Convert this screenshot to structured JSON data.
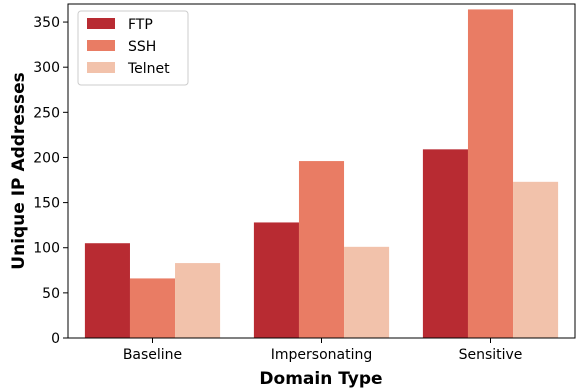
{
  "chart_data": {
    "type": "bar",
    "title": "",
    "xlabel": "Domain Type",
    "ylabel": "Unique IP Addresses",
    "categories": [
      "Baseline",
      "Impersonating",
      "Sensitive"
    ],
    "series": [
      {
        "name": "FTP",
        "values": [
          105,
          128,
          209
        ],
        "color": "#b82b32"
      },
      {
        "name": "SSH",
        "values": [
          66,
          196,
          364
        ],
        "color": "#e97c64"
      },
      {
        "name": "Telnet",
        "values": [
          83,
          101,
          173
        ],
        "color": "#f2c2ab"
      }
    ],
    "ylim": [
      0,
      370
    ],
    "yticks": [
      0,
      50,
      100,
      150,
      200,
      250,
      300,
      350
    ],
    "legend": "top-left",
    "grid": false
  }
}
